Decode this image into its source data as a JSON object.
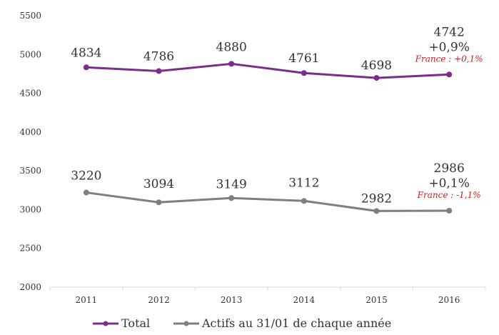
{
  "chart_data": {
    "type": "line",
    "title": "",
    "xlabel": "",
    "ylabel": "",
    "categories": [
      "2011",
      "2012",
      "2013",
      "2014",
      "2015",
      "2016"
    ],
    "ylim": [
      2000,
      5500
    ],
    "yticks": [
      2000,
      2500,
      3000,
      3500,
      4000,
      4500,
      5000,
      5500
    ],
    "ytick_labels": [
      "2000",
      "2500",
      "3000",
      "3500",
      "4000",
      "4500",
      "5000",
      "5500"
    ],
    "grid": false,
    "legend": "bottom-center",
    "series": [
      {
        "name": "Total",
        "color": "#7b2d8b",
        "values": [
          4834,
          4786,
          4880,
          4761,
          4698,
          4742
        ],
        "labels": [
          "4834",
          "4786",
          "4880",
          "4761",
          "4698",
          "4742"
        ],
        "change_label": "+0,9%",
        "france_label": "France : +0,1%"
      },
      {
        "name": "Actifs au 31/01 de chaque année",
        "color": "#7f7f7f",
        "values": [
          3220,
          3094,
          3149,
          3112,
          2982,
          2986
        ],
        "labels": [
          "3220",
          "3094",
          "3149",
          "3112",
          "2982",
          "2986"
        ],
        "change_label": "+0,1%",
        "france_label": "France : -1,1%"
      }
    ],
    "annotation_color": "#cc1f1f"
  }
}
